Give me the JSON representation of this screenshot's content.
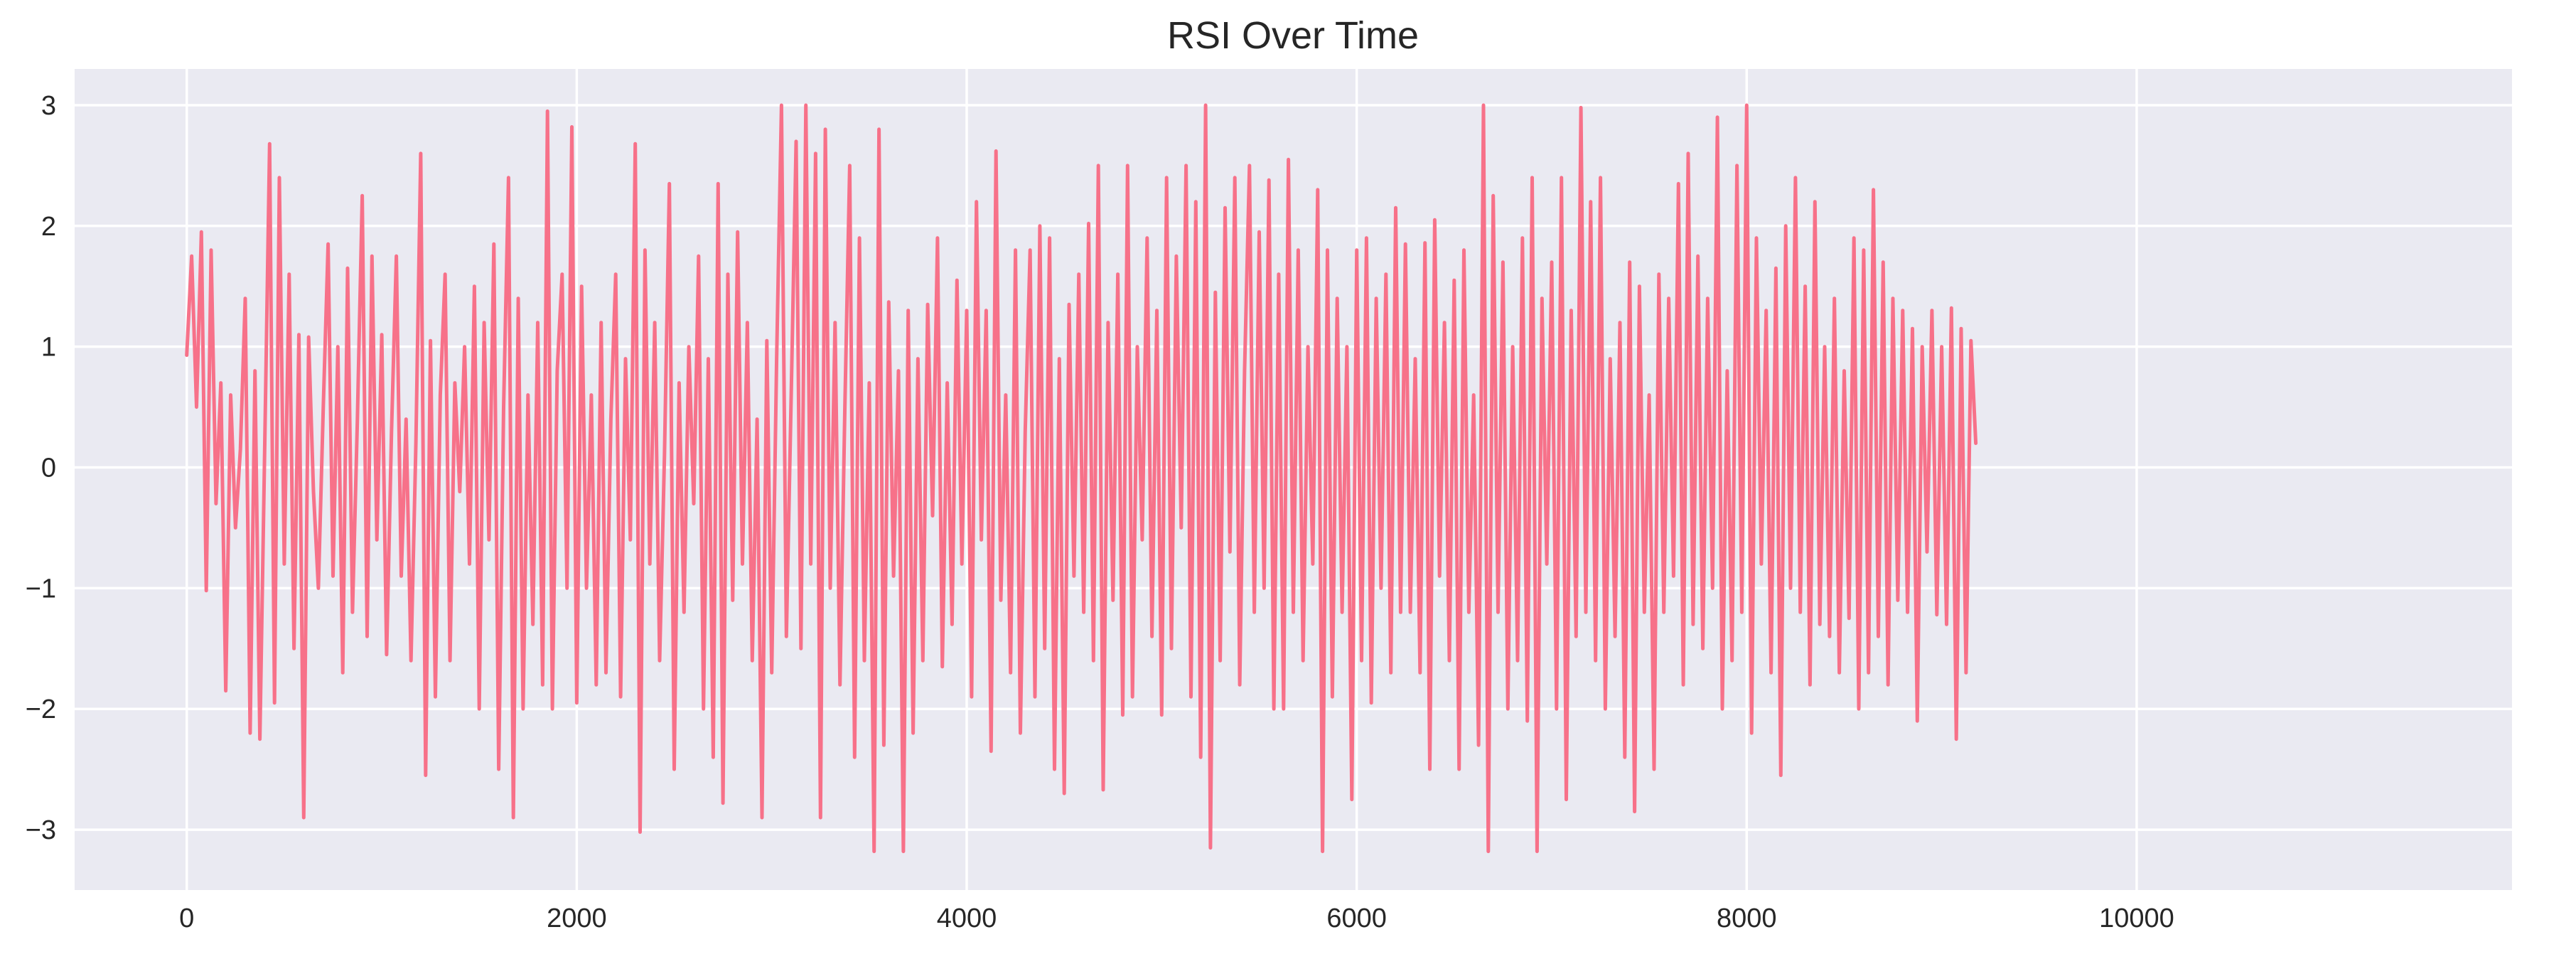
{
  "chart_data": {
    "type": "line",
    "title": "RSI Over Time",
    "xlabel": "",
    "ylabel": "",
    "xlim": [
      -575,
      11925
    ],
    "ylim": [
      -3.5,
      3.3
    ],
    "x_ticks": [
      0,
      2000,
      4000,
      6000,
      8000,
      10000
    ],
    "y_ticks": [
      3,
      2,
      1,
      0,
      -1,
      -2,
      -3
    ],
    "y_tick_labels": [
      "3",
      "2",
      "1",
      "0",
      "−1",
      "−2",
      "−3"
    ],
    "grid": true,
    "legend": "none",
    "background_color": "#eaeaf2",
    "series": [
      {
        "color": "#f77189",
        "x_start": 0,
        "x_step": 25,
        "values": [
          0.93,
          1.75,
          0.5,
          1.95,
          -1.02,
          1.8,
          -0.3,
          0.7,
          -1.85,
          0.6,
          -0.5,
          0.15,
          1.4,
          -2.2,
          0.8,
          -2.25,
          0.2,
          2.68,
          -1.95,
          2.4,
          -0.8,
          1.6,
          -1.5,
          1.1,
          -2.9,
          1.08,
          -0.2,
          -1.0,
          0.5,
          1.85,
          -0.9,
          1.0,
          -1.7,
          1.65,
          -1.2,
          0.4,
          2.25,
          -1.4,
          1.75,
          -0.6,
          1.1,
          -1.55,
          0.3,
          1.75,
          -0.9,
          0.4,
          -1.6,
          0.2,
          2.6,
          -2.55,
          1.05,
          -1.9,
          0.6,
          1.6,
          -1.6,
          0.7,
          -0.2,
          1.0,
          -0.8,
          1.5,
          -2.0,
          1.2,
          -0.6,
          1.85,
          -2.5,
          0.5,
          2.4,
          -2.9,
          1.4,
          -2.0,
          0.6,
          -1.3,
          1.2,
          -1.8,
          2.95,
          -2.0,
          0.8,
          1.6,
          -1.0,
          2.82,
          -1.95,
          1.5,
          -1.0,
          0.6,
          -1.8,
          1.2,
          -1.7,
          0.4,
          1.6,
          -1.9,
          0.9,
          -0.6,
          2.68,
          -3.02,
          1.8,
          -0.8,
          1.2,
          -1.6,
          0.1,
          2.35,
          -2.5,
          0.7,
          -1.2,
          1.0,
          -0.3,
          1.75,
          -2.0,
          0.9,
          -2.4,
          2.35,
          -2.78,
          1.6,
          -1.1,
          1.95,
          -0.8,
          1.2,
          -1.6,
          0.4,
          -2.9,
          1.05,
          -1.7,
          0.9,
          3.0,
          -1.4,
          0.6,
          2.7,
          -1.5,
          3.0,
          -0.8,
          2.6,
          -2.9,
          2.8,
          -1.0,
          1.2,
          -1.8,
          0.5,
          2.5,
          -2.4,
          1.9,
          -1.6,
          0.7,
          -3.18,
          2.8,
          -2.3,
          1.37,
          -0.9,
          0.8,
          -3.18,
          1.3,
          -2.2,
          0.9,
          -1.6,
          1.35,
          -0.4,
          1.9,
          -1.65,
          0.7,
          -1.3,
          1.55,
          -0.8,
          1.3,
          -1.9,
          2.2,
          -0.6,
          1.3,
          -2.35,
          2.62,
          -1.1,
          0.6,
          -1.7,
          1.8,
          -2.2,
          0.3,
          1.8,
          -1.9,
          2.0,
          -1.5,
          1.9,
          -2.5,
          0.9,
          -2.7,
          1.35,
          -0.9,
          1.6,
          -1.2,
          2.02,
          -1.6,
          2.5,
          -2.67,
          1.2,
          -1.1,
          1.6,
          -2.05,
          2.5,
          -1.9,
          1.0,
          -0.6,
          1.9,
          -1.4,
          1.3,
          -2.05,
          2.4,
          -1.5,
          1.75,
          -0.5,
          2.5,
          -1.9,
          2.2,
          -2.4,
          3.0,
          -3.15,
          1.45,
          -1.6,
          2.15,
          -0.7,
          2.4,
          -1.8,
          0.8,
          2.5,
          -1.2,
          1.95,
          -1.0,
          2.38,
          -2.0,
          1.6,
          -2.0,
          2.55,
          -1.2,
          1.8,
          -1.6,
          1.0,
          -0.8,
          2.3,
          -3.18,
          1.8,
          -1.9,
          1.4,
          -1.2,
          1.0,
          -2.75,
          1.8,
          -1.6,
          1.9,
          -1.95,
          1.4,
          -1.0,
          1.6,
          -1.7,
          2.15,
          -1.2,
          1.85,
          -1.2,
          0.9,
          -1.7,
          1.86,
          -2.5,
          2.05,
          -0.9,
          1.2,
          -1.6,
          1.55,
          -2.5,
          1.8,
          -1.2,
          0.6,
          -2.3,
          3.0,
          -3.18,
          2.25,
          -1.2,
          1.7,
          -2.0,
          1.0,
          -1.6,
          1.9,
          -2.1,
          2.4,
          -3.18,
          1.4,
          -0.8,
          1.7,
          -2.0,
          2.4,
          -2.75,
          1.3,
          -1.4,
          2.98,
          -1.2,
          2.2,
          -1.6,
          2.4,
          -2.0,
          0.9,
          -1.4,
          1.2,
          -2.4,
          1.7,
          -2.85,
          1.5,
          -1.2,
          0.6,
          -2.5,
          1.6,
          -1.2,
          1.4,
          -0.9,
          2.35,
          -1.8,
          2.6,
          -1.3,
          1.75,
          -1.5,
          1.4,
          -1.0,
          2.9,
          -2.0,
          0.8,
          -1.6,
          2.5,
          -1.2,
          3.0,
          -2.2,
          1.9,
          -0.8,
          1.3,
          -1.7,
          1.65,
          -2.55,
          2.0,
          -1.0,
          2.4,
          -1.2,
          1.5,
          -1.8,
          2.2,
          -1.3,
          1.0,
          -1.4,
          1.4,
          -1.7,
          0.8,
          -1.25,
          1.9,
          -2.0,
          1.8,
          -1.7,
          2.3,
          -1.4,
          1.7,
          -1.8,
          1.4,
          -1.1,
          1.3,
          -1.2,
          1.15,
          -2.1,
          1.0,
          -0.7,
          1.3,
          -1.22,
          1.0,
          -1.3,
          1.32,
          -2.25,
          1.15,
          -1.7,
          1.05,
          0.2
        ]
      }
    ]
  }
}
